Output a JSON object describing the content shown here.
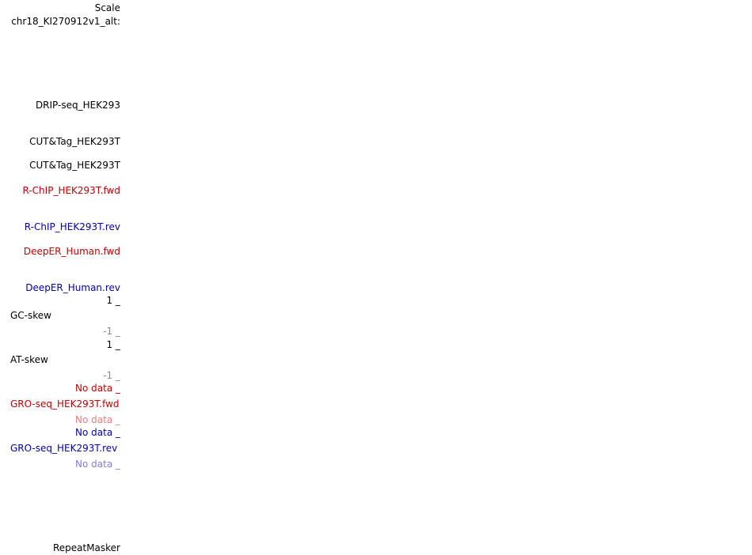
{
  "header": {
    "scale": "Scale",
    "chrom": "chr18_KI270912v1_alt:"
  },
  "tracks": [
    {
      "label": "DRIP-seq_HEK293"
    },
    {
      "label": "CUT&Tag_HEK293T"
    },
    {
      "label": "CUT&Tag_HEK293T"
    },
    {
      "label": "R-ChIP_HEK293T.fwd"
    },
    {
      "label": "R-ChIP_HEK293T.rev"
    },
    {
      "label": "DeepER_Human.fwd"
    },
    {
      "label": "DeepER_Human.rev"
    },
    {
      "label": "GC-skew",
      "max": "1 _",
      "min": "-1 _"
    },
    {
      "label": "AT-skew",
      "max": "1 _",
      "min": "-1 _"
    },
    {
      "label": "GRO-seq_HEK293T.fwd",
      "max": "No data _",
      "min": "No data _"
    },
    {
      "label": "GRO-seq_HEK293T.rev",
      "max": "No data _",
      "min": "No data _"
    },
    {
      "label": "RepeatMasker"
    }
  ]
}
